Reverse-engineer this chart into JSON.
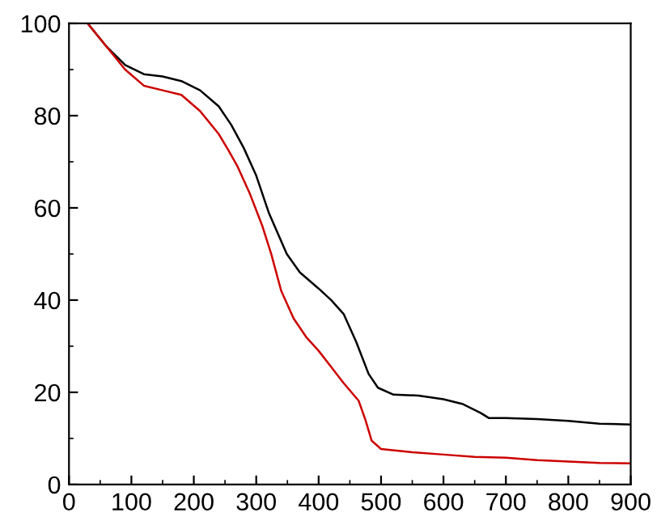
{
  "chart_data": {
    "type": "line",
    "xlim": [
      0,
      900
    ],
    "ylim": [
      0,
      100
    ],
    "xticks": [
      0,
      100,
      200,
      300,
      400,
      500,
      600,
      700,
      800,
      900
    ],
    "yticks": [
      0,
      20,
      40,
      60,
      80,
      100
    ],
    "grid": false,
    "legend": false,
    "marker": "none",
    "line_style": "solid",
    "series": [
      {
        "color": "#000000",
        "x": [
          30,
          60,
          90,
          120,
          150,
          180,
          210,
          240,
          260,
          280,
          300,
          320,
          349,
          370,
          400,
          420,
          440,
          460,
          480,
          495,
          520,
          560,
          600,
          630,
          660,
          673,
          700,
          750,
          800,
          850,
          900
        ],
        "values": [
          100,
          95,
          91,
          89,
          88.5,
          87.5,
          85.5,
          82,
          78,
          73,
          67,
          59,
          50,
          46,
          42.5,
          40,
          37,
          31,
          24,
          21,
          19.5,
          19.3,
          18.5,
          17.5,
          15.5,
          14.4,
          14.4,
          14.2,
          13.8,
          13.2,
          13.0
        ]
      },
      {
        "color": "#cc0000",
        "x": [
          30,
          60,
          90,
          120,
          150,
          180,
          210,
          240,
          255,
          270,
          290,
          310,
          324,
          340,
          360,
          380,
          400,
          420,
          440,
          464,
          475,
          485,
          500,
          550,
          600,
          650,
          700,
          750,
          800,
          850,
          900
        ],
        "values": [
          100,
          95,
          90,
          86.5,
          85.5,
          84.5,
          81,
          76,
          72.6,
          69,
          63,
          56,
          50,
          42,
          36,
          32,
          29,
          25.5,
          22,
          18.2,
          14,
          9.5,
          7.7,
          7,
          6.5,
          6,
          5.8,
          5.3,
          5,
          4.7,
          4.6
        ]
      }
    ]
  }
}
